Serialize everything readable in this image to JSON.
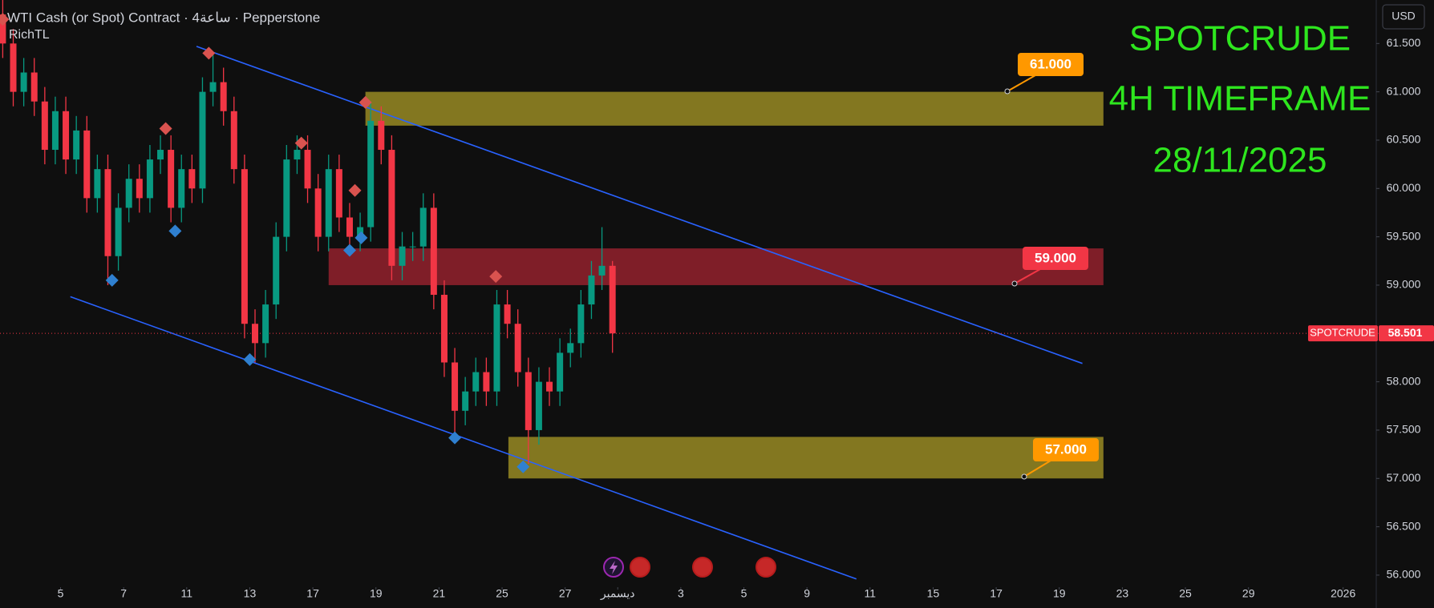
{
  "chart_data": {
    "type": "candlestick",
    "title": "WTI Cash (or Spot) Contract · 4ساعة · Pepperstone",
    "indicator": "RichTL",
    "currency": "USD",
    "overlay_text": [
      "SPOTCRUDE",
      "4H TIMEFRAME",
      "28/11/2025"
    ],
    "up_color": "#089981",
    "down_color": "#f23645",
    "open": [
      61.8,
      61.5,
      61.0,
      61.2,
      60.9,
      60.4,
      60.8,
      60.3,
      60.6,
      59.9,
      60.2,
      59.3,
      59.8,
      60.1,
      59.9,
      60.3,
      60.4,
      59.8,
      60.2,
      60.0,
      61.0,
      61.1,
      60.8,
      60.2,
      58.6,
      58.4,
      58.8,
      59.5,
      60.3,
      60.4,
      60.0,
      59.5,
      60.2,
      59.7,
      59.5,
      59.6,
      60.7,
      60.4,
      59.2,
      59.4,
      59.4,
      59.8,
      58.9,
      58.2,
      57.7,
      57.9,
      58.1,
      57.9,
      58.8,
      58.6,
      58.1,
      57.5,
      58.0,
      57.9,
      58.3,
      58.4,
      58.8,
      59.1,
      59.2
    ],
    "high": [
      61.95,
      61.65,
      61.35,
      61.35,
      61.05,
      60.95,
      60.95,
      60.75,
      60.75,
      60.35,
      60.35,
      59.95,
      60.25,
      60.25,
      60.45,
      60.55,
      60.55,
      60.35,
      60.35,
      61.15,
      61.4,
      61.25,
      60.95,
      60.35,
      58.75,
      58.95,
      59.65,
      60.45,
      60.55,
      60.55,
      60.15,
      60.35,
      60.35,
      59.85,
      59.75,
      60.9,
      60.85,
      60.55,
      59.55,
      59.55,
      59.95,
      59.95,
      59.05,
      58.35,
      58.05,
      58.25,
      58.25,
      58.95,
      58.95,
      58.75,
      58.25,
      58.15,
      58.15,
      58.45,
      58.55,
      58.95,
      59.25,
      59.6,
      59.25
    ],
    "low": [
      61.35,
      60.85,
      60.85,
      60.75,
      60.25,
      60.25,
      60.15,
      60.15,
      59.75,
      59.75,
      59.0,
      59.15,
      59.65,
      59.75,
      59.75,
      60.15,
      59.65,
      59.65,
      59.85,
      59.85,
      60.85,
      60.65,
      60.05,
      58.45,
      58.2,
      58.25,
      58.65,
      59.35,
      60.15,
      59.85,
      59.35,
      59.35,
      59.55,
      59.35,
      59.35,
      59.45,
      60.25,
      59.05,
      59.05,
      59.25,
      59.25,
      58.75,
      58.05,
      57.45,
      57.55,
      57.75,
      57.75,
      57.75,
      58.45,
      57.95,
      57.15,
      57.35,
      57.75,
      57.75,
      58.15,
      58.25,
      58.65,
      58.95,
      58.3
    ],
    "close": [
      61.5,
      61.0,
      61.2,
      60.9,
      60.4,
      60.8,
      60.3,
      60.6,
      59.9,
      60.2,
      59.3,
      59.8,
      60.1,
      59.9,
      60.3,
      60.4,
      59.8,
      60.2,
      60.0,
      61.0,
      61.1,
      60.8,
      60.2,
      58.6,
      58.4,
      58.8,
      59.5,
      60.3,
      60.4,
      60.0,
      59.5,
      60.2,
      59.7,
      59.5,
      59.6,
      60.7,
      60.4,
      59.2,
      59.4,
      59.4,
      59.8,
      58.9,
      58.2,
      57.7,
      57.9,
      58.1,
      57.9,
      58.8,
      58.6,
      58.1,
      57.5,
      58.0,
      57.9,
      58.3,
      58.4,
      58.8,
      59.1,
      59.2,
      58.501
    ],
    "last_price_name": "SPOTCRUDE",
    "last_price": 58.501,
    "xlim": [
      -0.26,
      130.5
    ],
    "ylim": [
      55.9,
      61.95
    ],
    "xticks": [
      {
        "value": 5.5,
        "label": "5"
      },
      {
        "value": 11.5,
        "label": "7"
      },
      {
        "value": 17.5,
        "label": "11"
      },
      {
        "value": 23.5,
        "label": "13"
      },
      {
        "value": 29.5,
        "label": "17"
      },
      {
        "value": 35.5,
        "label": "19"
      },
      {
        "value": 41.5,
        "label": "21"
      },
      {
        "value": 47.5,
        "label": "25"
      },
      {
        "value": 53.5,
        "label": "27"
      },
      {
        "value": 58.5,
        "label": "ديسمبر"
      },
      {
        "value": 64.5,
        "label": "3"
      },
      {
        "value": 70.5,
        "label": "5"
      },
      {
        "value": 76.5,
        "label": "9"
      },
      {
        "value": 82.5,
        "label": "11"
      },
      {
        "value": 88.5,
        "label": "15"
      },
      {
        "value": 94.5,
        "label": "17"
      },
      {
        "value": 100.5,
        "label": "19"
      },
      {
        "value": 106.5,
        "label": "23"
      },
      {
        "value": 112.5,
        "label": "25"
      },
      {
        "value": 118.5,
        "label": "29"
      },
      {
        "value": 127.5,
        "label": "2026"
      }
    ],
    "yticks": [
      {
        "value": 56,
        "label": "56.000"
      },
      {
        "value": 56.5,
        "label": "56.500"
      },
      {
        "value": 57,
        "label": "57.000"
      },
      {
        "value": 57.5,
        "label": "57.500"
      },
      {
        "value": 58,
        "label": "58.000"
      },
      {
        "value": 58.5,
        "label": "58.500"
      },
      {
        "value": 59,
        "label": "59.000"
      },
      {
        "value": 59.5,
        "label": "59.500"
      },
      {
        "value": 60,
        "label": "60.000"
      },
      {
        "value": 60.5,
        "label": "60.500"
      },
      {
        "value": 61,
        "label": "61.000"
      },
      {
        "value": 61.5,
        "label": "61.500"
      }
    ],
    "zones": [
      {
        "x": [
          34.5,
          104.7
        ],
        "top": 61.0,
        "bottom": 60.65,
        "color": "#8a7d22",
        "label": "61.000",
        "label_color": "#ff9800"
      },
      {
        "x": [
          31.0,
          104.7
        ],
        "top": 59.38,
        "bottom": 59.0,
        "color": "#86202a",
        "label": "59.000",
        "label_color": "#f23645"
      },
      {
        "x": [
          48.1,
          104.7
        ],
        "top": 57.43,
        "bottom": 57.0,
        "color": "#8a7d22",
        "label": "57.000",
        "label_color": "#ff9800"
      }
    ],
    "trendlines": [
      {
        "x": [
          18.43,
          102.7
        ],
        "values": [
          61.47,
          58.19
        ],
        "color": "#2962ff"
      },
      {
        "x": [
          6.43,
          81.2
        ],
        "values": [
          58.88,
          55.96
        ],
        "color": "#2962ff"
      }
    ],
    "signals": [
      {
        "color": "#d9534f",
        "x": [
          0,
          19.6,
          15.5,
          28.4,
          33.5,
          34.5,
          46.9
        ],
        "values": [
          61.75,
          61.4,
          60.62,
          60.47,
          59.98,
          60.89,
          59.09
        ]
      },
      {
        "color": "#2f80d0",
        "x": [
          10.4,
          16.4,
          23.5,
          33.0,
          34.1,
          43.0,
          49.5
        ],
        "values": [
          59.05,
          59.56,
          58.23,
          59.36,
          59.49,
          57.42,
          57.12
        ]
      }
    ]
  }
}
